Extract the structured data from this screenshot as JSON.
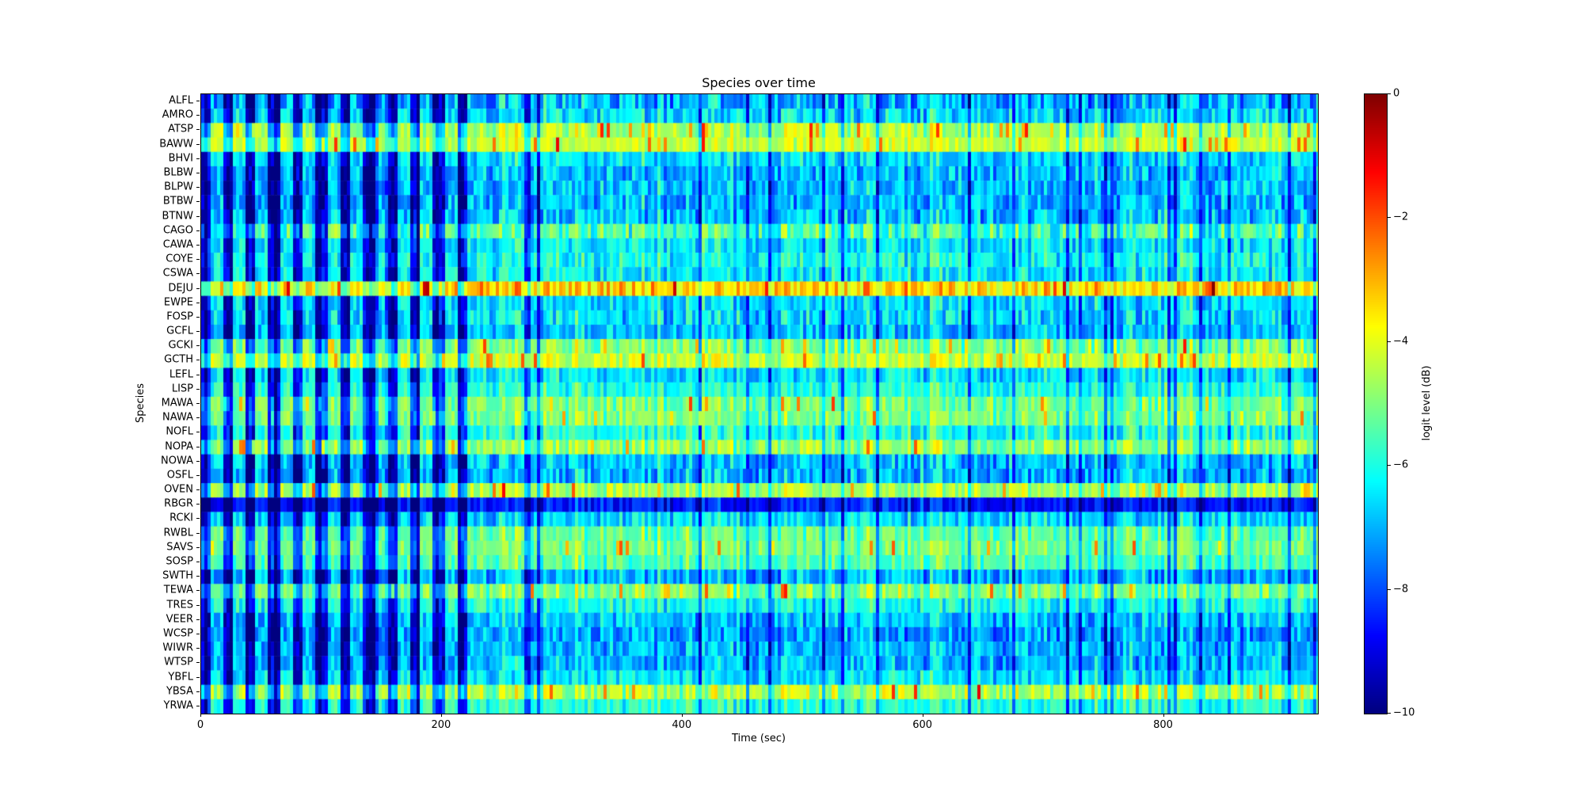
{
  "chart_data": {
    "type": "heatmap",
    "title": "Species over time",
    "xlabel": "Time (sec)",
    "ylabel": "Species",
    "colorbar_label": "logit level (dB)",
    "colormap": "jet",
    "x_range": [
      0,
      928
    ],
    "x_ticks": [
      {
        "value": 0,
        "label": "0"
      },
      {
        "value": 200,
        "label": "200"
      },
      {
        "value": 400,
        "label": "400"
      },
      {
        "value": 600,
        "label": "600"
      },
      {
        "value": 800,
        "label": "800"
      }
    ],
    "value_range": [
      -10,
      0
    ],
    "colorbar_ticks": [
      {
        "value": 0,
        "label": "0"
      },
      {
        "value": -2,
        "label": "−2"
      },
      {
        "value": -4,
        "label": "−4"
      },
      {
        "value": -6,
        "label": "−6"
      },
      {
        "value": -8,
        "label": "−8"
      },
      {
        "value": -10,
        "label": "−10"
      }
    ],
    "time_structure": {
      "banded_period_end_sec": 222,
      "band_period_sec": 19.5,
      "description": "Strong alternating dark-blue vertical bands from 0 to ~220 s across all species; finer vertical streaks on a cyan background afterwards."
    },
    "rows": [
      {
        "species": "ALFL",
        "mean_db": -7.0,
        "var_db": 1.5
      },
      {
        "species": "AMRO",
        "mean_db": -6.6,
        "var_db": 1.2
      },
      {
        "species": "ATSP",
        "mean_db": -4.6,
        "var_db": 0.8
      },
      {
        "species": "BAWW",
        "mean_db": -4.3,
        "var_db": 0.7
      },
      {
        "species": "BHVI",
        "mean_db": -6.6,
        "var_db": 1.0
      },
      {
        "species": "BLBW",
        "mean_db": -6.9,
        "var_db": 1.2
      },
      {
        "species": "BLPW",
        "mean_db": -6.9,
        "var_db": 1.2
      },
      {
        "species": "BTBW",
        "mean_db": -7.0,
        "var_db": 1.2
      },
      {
        "species": "BTNW",
        "mean_db": -6.9,
        "var_db": 1.2
      },
      {
        "species": "CAGO",
        "mean_db": -5.6,
        "var_db": 1.5
      },
      {
        "species": "CAWA",
        "mean_db": -6.4,
        "var_db": 1.0
      },
      {
        "species": "COYE",
        "mean_db": -6.2,
        "var_db": 1.0
      },
      {
        "species": "CSWA",
        "mean_db": -6.4,
        "var_db": 1.0
      },
      {
        "species": "DEJU",
        "mean_db": -3.4,
        "var_db": 1.2
      },
      {
        "species": "EWPE",
        "mean_db": -6.6,
        "var_db": 1.0
      },
      {
        "species": "FOSP",
        "mean_db": -6.6,
        "var_db": 1.2
      },
      {
        "species": "GCFL",
        "mean_db": -6.9,
        "var_db": 1.0
      },
      {
        "species": "GCKI",
        "mean_db": -5.0,
        "var_db": 1.0
      },
      {
        "species": "GCTH",
        "mean_db": -4.3,
        "var_db": 1.0
      },
      {
        "species": "LEFL",
        "mean_db": -6.5,
        "var_db": 1.0
      },
      {
        "species": "LISP",
        "mean_db": -5.9,
        "var_db": 0.8
      },
      {
        "species": "MAWA",
        "mean_db": -5.1,
        "var_db": 0.9
      },
      {
        "species": "NAWA",
        "mean_db": -5.1,
        "var_db": 0.9
      },
      {
        "species": "NOFL",
        "mean_db": -6.0,
        "var_db": 1.0
      },
      {
        "species": "NOPA",
        "mean_db": -4.9,
        "var_db": 1.0
      },
      {
        "species": "NOWA",
        "mean_db": -6.9,
        "var_db": 1.2
      },
      {
        "species": "OSFL",
        "mean_db": -7.0,
        "var_db": 1.2
      },
      {
        "species": "OVEN",
        "mean_db": -4.6,
        "var_db": 0.9
      },
      {
        "species": "RBGR",
        "mean_db": -8.6,
        "var_db": 0.8
      },
      {
        "species": "RCKI",
        "mean_db": -6.6,
        "var_db": 1.0
      },
      {
        "species": "RWBL",
        "mean_db": -5.3,
        "var_db": 0.8
      },
      {
        "species": "SAVS",
        "mean_db": -5.1,
        "var_db": 0.7
      },
      {
        "species": "SOSP",
        "mean_db": -5.5,
        "var_db": 0.8
      },
      {
        "species": "SWTH",
        "mean_db": -7.0,
        "var_db": 1.2
      },
      {
        "species": "TEWA",
        "mean_db": -5.1,
        "var_db": 1.0
      },
      {
        "species": "TRES",
        "mean_db": -6.1,
        "var_db": 1.0
      },
      {
        "species": "VEER",
        "mean_db": -6.9,
        "var_db": 1.1
      },
      {
        "species": "WCSP",
        "mean_db": -7.2,
        "var_db": 1.2
      },
      {
        "species": "WIWR",
        "mean_db": -7.0,
        "var_db": 1.1
      },
      {
        "species": "WTSP",
        "mean_db": -7.0,
        "var_db": 1.1
      },
      {
        "species": "YBFL",
        "mean_db": -6.5,
        "var_db": 1.0
      },
      {
        "species": "YBSA",
        "mean_db": -4.6,
        "var_db": 1.2
      },
      {
        "species": "YRWA",
        "mean_db": -5.9,
        "var_db": 0.9
      }
    ]
  }
}
